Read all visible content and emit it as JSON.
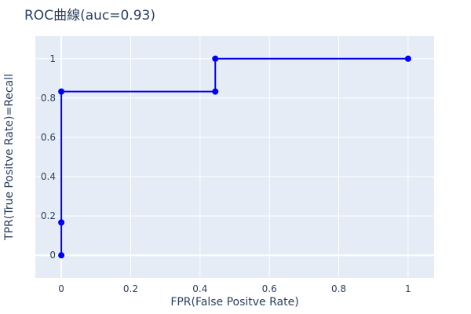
{
  "chart_data": {
    "type": "line",
    "title": "ROC曲線(auc=0.93)",
    "xlabel": "FPR(False Positve Rate)",
    "ylabel": "TPR(True Positve Rate)=Recall",
    "xlim": [
      -0.075,
      1.075
    ],
    "ylim": [
      -0.115,
      1.115
    ],
    "x_ticks": [
      0,
      0.2,
      0.4,
      0.6,
      0.8,
      1
    ],
    "y_ticks": [
      0,
      0.2,
      0.4,
      0.6,
      0.8,
      1
    ],
    "x_tick_labels": [
      "0",
      "0.2",
      "0.4",
      "0.6",
      "0.8",
      "1"
    ],
    "y_tick_labels": [
      "0",
      "0.2",
      "0.4",
      "0.6",
      "0.8",
      "1"
    ],
    "grid": true,
    "series": [
      {
        "x": [
          0,
          0,
          0,
          0.444,
          0.444,
          1
        ],
        "y": [
          0,
          0.167,
          0.833,
          0.833,
          1,
          1
        ],
        "color": "#0000ee",
        "mode": "lines+markers"
      }
    ],
    "plot_bgcolor": "#e5ecf6",
    "grid_color": "#ffffff",
    "text_color": "#2a3f5f"
  }
}
